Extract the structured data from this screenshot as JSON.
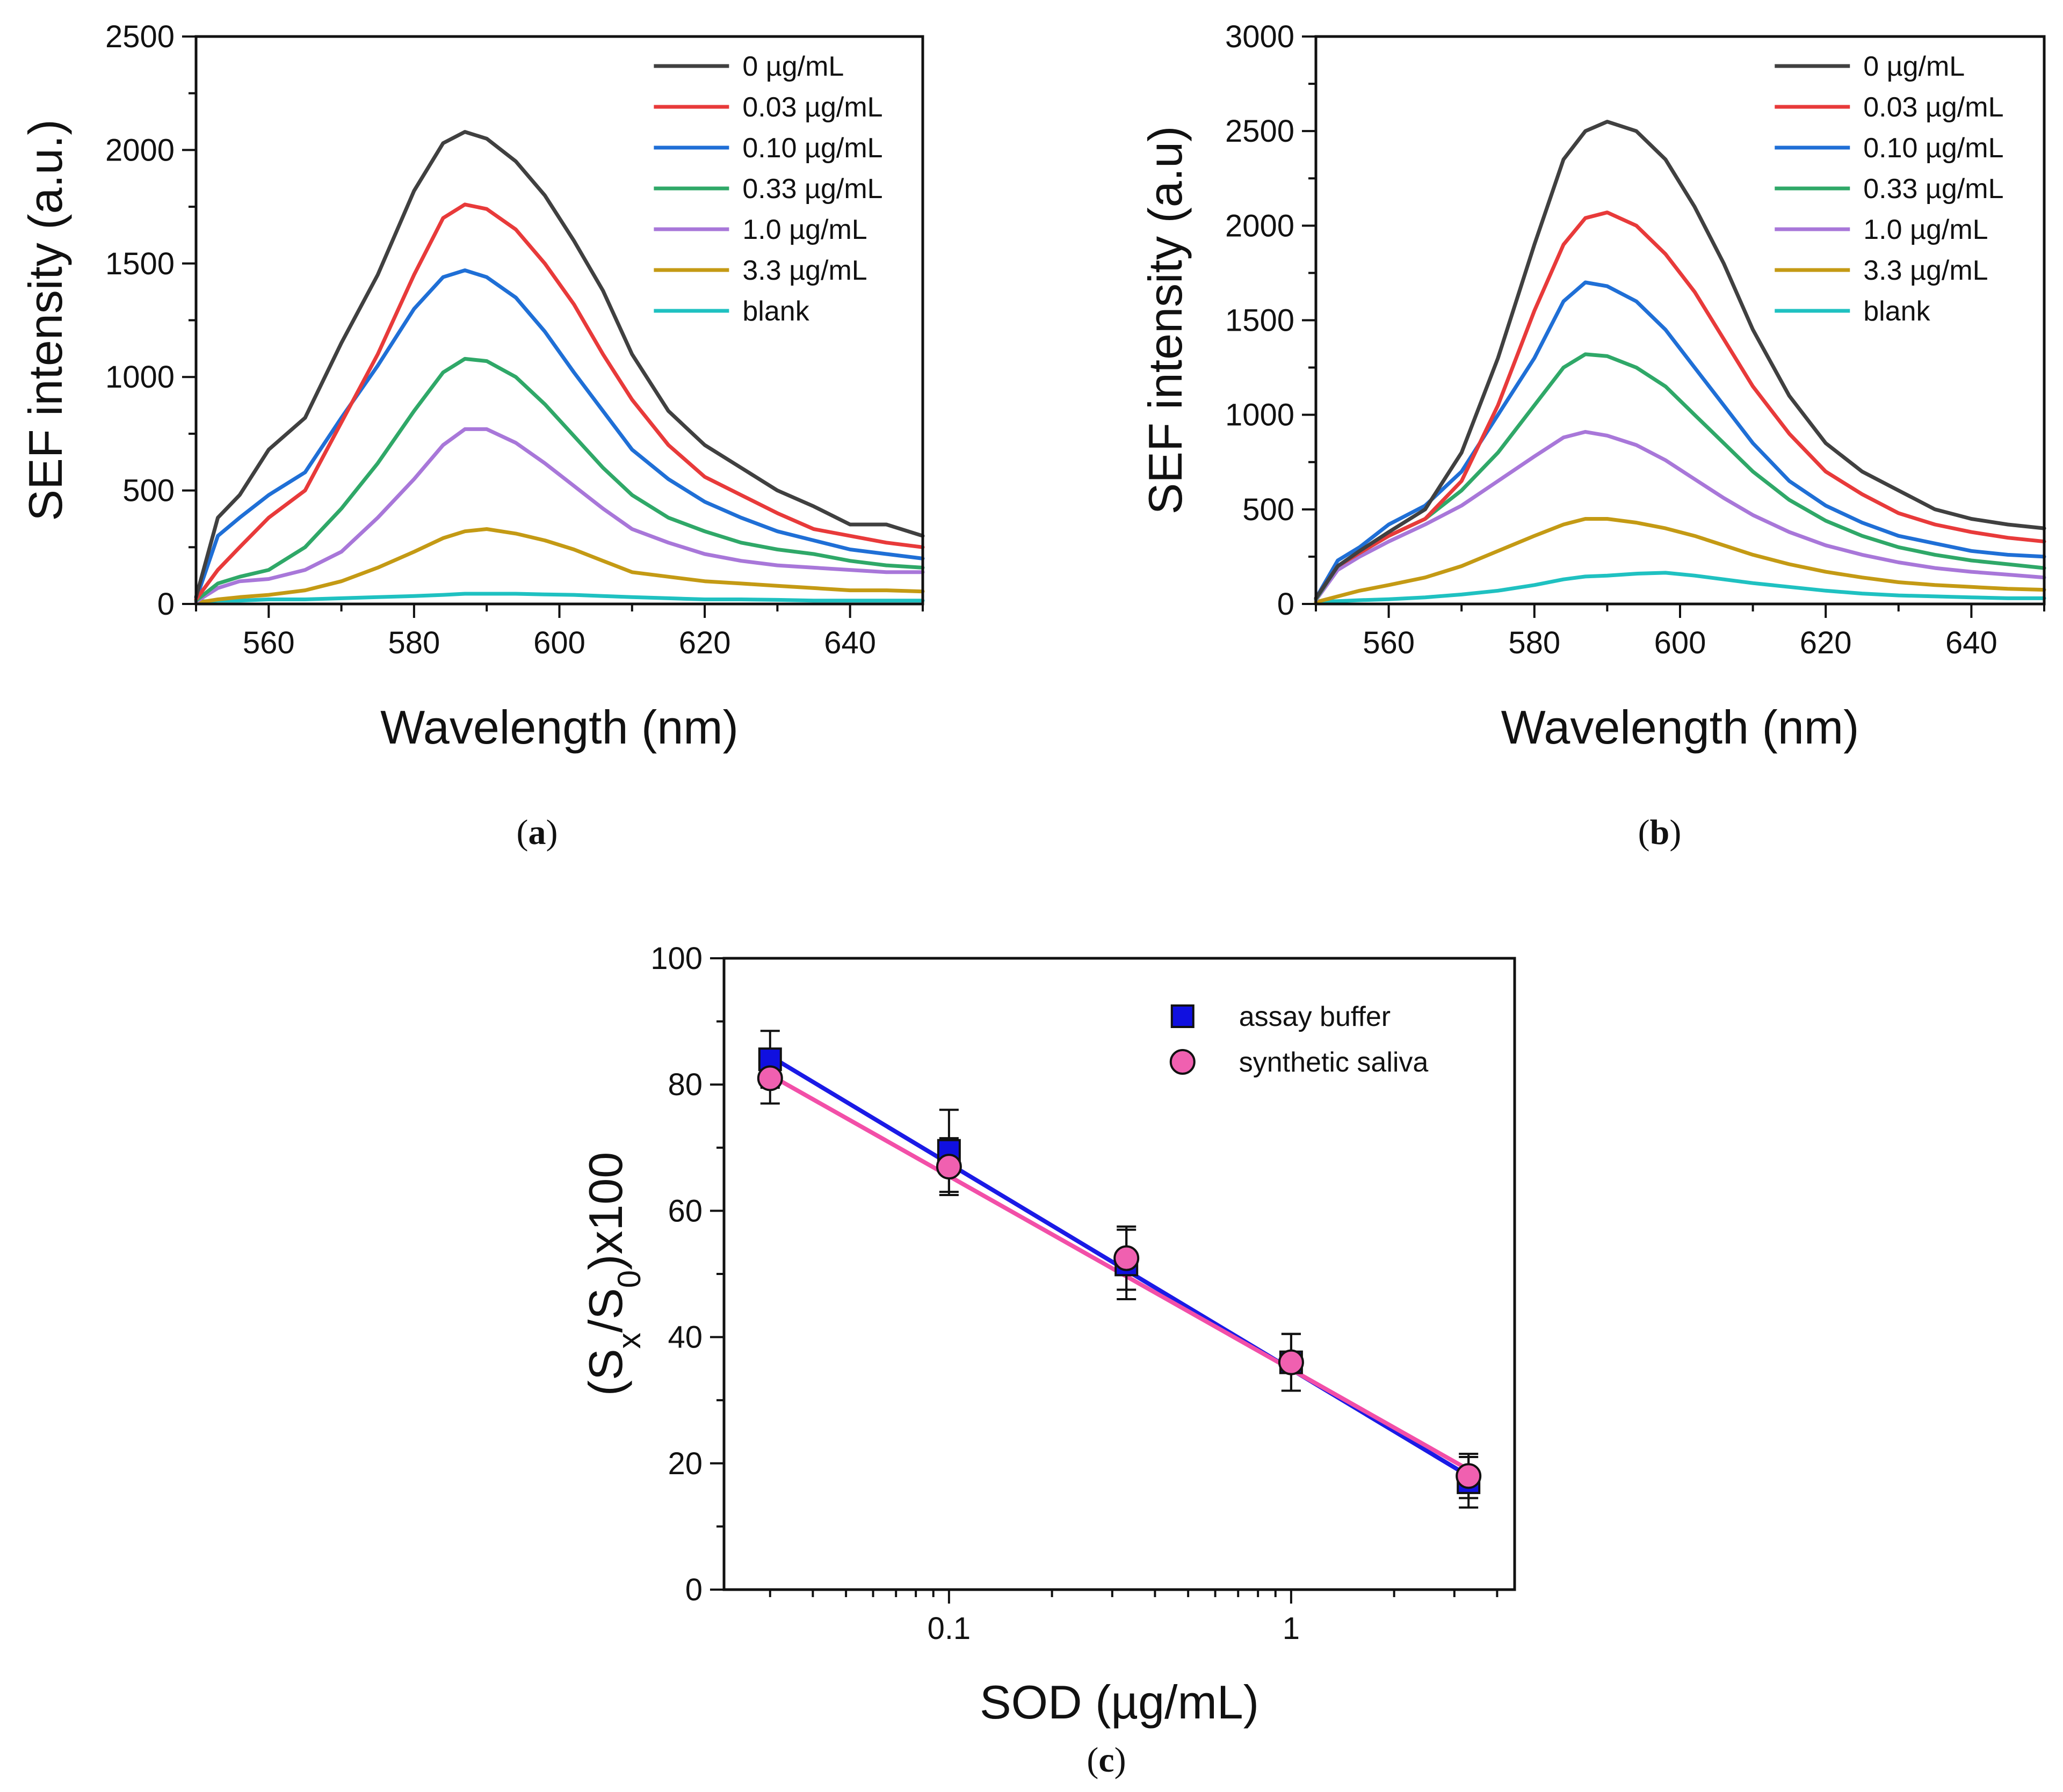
{
  "chart_data": [
    {
      "type": "line",
      "panel": "(a)",
      "panel_letter": "a",
      "xlabel": "Wavelength (nm)",
      "ylabel": "SEF intensity (a.u.)",
      "xlim": [
        550,
        650
      ],
      "ylim": [
        0,
        2500
      ],
      "xticks": [
        560,
        580,
        600,
        620,
        640
      ],
      "yticks": [
        0,
        500,
        1000,
        1500,
        2000,
        2500
      ],
      "legend_position": "top-right",
      "x": [
        550,
        553,
        556,
        560,
        565,
        570,
        575,
        580,
        584,
        587,
        590,
        594,
        598,
        602,
        606,
        610,
        615,
        620,
        625,
        630,
        635,
        640,
        645,
        650
      ],
      "series": [
        {
          "name": "0 µg/mL",
          "color": "#404040",
          "values": [
            30,
            380,
            480,
            680,
            820,
            1150,
            1450,
            1820,
            2030,
            2080,
            2050,
            1950,
            1800,
            1600,
            1380,
            1100,
            850,
            700,
            600,
            500,
            430,
            350,
            350,
            300
          ]
        },
        {
          "name": "0.03 µg/mL",
          "color": "#e83a3a",
          "values": [
            20,
            150,
            250,
            380,
            500,
            800,
            1100,
            1450,
            1700,
            1760,
            1740,
            1650,
            1500,
            1320,
            1100,
            900,
            700,
            560,
            480,
            400,
            330,
            300,
            270,
            250
          ]
        },
        {
          "name": "0.10 µg/mL",
          "color": "#1f6fd6",
          "values": [
            20,
            300,
            380,
            480,
            580,
            820,
            1050,
            1300,
            1440,
            1470,
            1440,
            1350,
            1200,
            1020,
            850,
            680,
            550,
            450,
            380,
            320,
            280,
            240,
            220,
            200
          ]
        },
        {
          "name": "0.33 µg/mL",
          "color": "#2fa868",
          "values": [
            15,
            90,
            120,
            150,
            250,
            420,
            620,
            850,
            1020,
            1080,
            1070,
            1000,
            880,
            740,
            600,
            480,
            380,
            320,
            270,
            240,
            220,
            190,
            170,
            160
          ]
        },
        {
          "name": "1.0 µg/mL",
          "color": "#a877d9",
          "values": [
            10,
            70,
            100,
            110,
            150,
            230,
            380,
            550,
            700,
            770,
            770,
            710,
            620,
            520,
            420,
            330,
            270,
            220,
            190,
            170,
            160,
            150,
            140,
            140
          ]
        },
        {
          "name": "3.3 µg/mL",
          "color": "#c49a14",
          "values": [
            5,
            20,
            30,
            40,
            60,
            100,
            160,
            230,
            290,
            320,
            330,
            310,
            280,
            240,
            190,
            140,
            120,
            100,
            90,
            80,
            70,
            60,
            60,
            55
          ]
        },
        {
          "name": "blank",
          "color": "#1fc1c1",
          "values": [
            10,
            15,
            15,
            20,
            20,
            25,
            30,
            35,
            40,
            45,
            45,
            45,
            42,
            40,
            35,
            30,
            25,
            20,
            20,
            18,
            15,
            15,
            15,
            15
          ]
        }
      ]
    },
    {
      "type": "line",
      "panel": "(b)",
      "panel_letter": "b",
      "xlabel": "Wavelength (nm)",
      "ylabel": "SEF intensity (a.u)",
      "xlim": [
        550,
        650
      ],
      "ylim": [
        0,
        3000
      ],
      "xticks": [
        560,
        580,
        600,
        620,
        640
      ],
      "yticks": [
        0,
        500,
        1000,
        1500,
        2000,
        2500,
        3000
      ],
      "legend_position": "top-right",
      "x": [
        550,
        553,
        556,
        560,
        565,
        570,
        575,
        580,
        584,
        587,
        590,
        594,
        598,
        602,
        606,
        610,
        615,
        620,
        625,
        630,
        635,
        640,
        645,
        650
      ],
      "series": [
        {
          "name": "0 µg/mL",
          "color": "#404040",
          "values": [
            30,
            200,
            280,
            380,
            500,
            800,
            1300,
            1900,
            2350,
            2500,
            2550,
            2500,
            2350,
            2100,
            1800,
            1450,
            1100,
            850,
            700,
            600,
            500,
            450,
            420,
            400
          ]
        },
        {
          "name": "0.03 µg/mL",
          "color": "#e83a3a",
          "values": [
            30,
            200,
            270,
            360,
            450,
            650,
            1050,
            1550,
            1900,
            2040,
            2070,
            2000,
            1850,
            1650,
            1400,
            1150,
            900,
            700,
            580,
            480,
            420,
            380,
            350,
            330
          ]
        },
        {
          "name": "0.10 µg/mL",
          "color": "#1f6fd6",
          "values": [
            30,
            230,
            300,
            420,
            520,
            700,
            1000,
            1300,
            1600,
            1700,
            1680,
            1600,
            1450,
            1250,
            1050,
            850,
            650,
            520,
            430,
            360,
            320,
            280,
            260,
            250
          ]
        },
        {
          "name": "0.33 µg/mL",
          "color": "#2fa868",
          "values": [
            25,
            200,
            270,
            360,
            450,
            600,
            800,
            1050,
            1250,
            1320,
            1310,
            1250,
            1150,
            1000,
            850,
            700,
            550,
            440,
            360,
            300,
            260,
            230,
            210,
            190
          ]
        },
        {
          "name": "1.0 µg/mL",
          "color": "#a877d9",
          "values": [
            20,
            180,
            250,
            330,
            420,
            520,
            650,
            780,
            880,
            910,
            890,
            840,
            760,
            660,
            560,
            470,
            380,
            310,
            260,
            220,
            190,
            170,
            155,
            140
          ]
        },
        {
          "name": "3.3 µg/mL",
          "color": "#c49a14",
          "values": [
            10,
            40,
            70,
            100,
            140,
            200,
            280,
            360,
            420,
            450,
            450,
            430,
            400,
            360,
            310,
            260,
            210,
            170,
            140,
            115,
            100,
            90,
            80,
            75
          ]
        },
        {
          "name": "blank",
          "color": "#1fc1c1",
          "values": [
            10,
            15,
            20,
            25,
            35,
            50,
            70,
            100,
            130,
            145,
            150,
            160,
            165,
            150,
            130,
            110,
            90,
            70,
            55,
            45,
            40,
            35,
            30,
            30
          ]
        }
      ]
    },
    {
      "type": "scatter",
      "panel": "(c)",
      "panel_letter": "c",
      "xlabel": "SOD (µg/mL)",
      "ylabel": {
        "pre": "(S",
        "sub1": "x",
        "mid": "/S",
        "sub2": "0",
        "post": ")x100"
      },
      "xscale": "log",
      "xlim": [
        0.022,
        4.5
      ],
      "ylim": [
        0,
        100
      ],
      "xticks": [
        {
          "value": 0.1,
          "label": "0.1"
        },
        {
          "value": 1,
          "label": "1"
        }
      ],
      "yticks": [
        0,
        20,
        40,
        60,
        80,
        100
      ],
      "legend_position": "top-right",
      "series": [
        {
          "name": "assay buffer",
          "marker": "square",
          "color": "#1010e0",
          "line_color": "#1a1ae6",
          "x": [
            0.03,
            0.1,
            0.33,
            1.0,
            3.3
          ],
          "y": [
            84,
            69.5,
            51.5,
            36,
            17
          ],
          "err": [
            4.5,
            6.5,
            5.5,
            4.5,
            4.0
          ],
          "fit": {
            "x": [
              0.03,
              3.3
            ],
            "y": [
              84.5,
              18.0
            ]
          }
        },
        {
          "name": "synthetic saliva",
          "marker": "circle",
          "color": "#f060b0",
          "line_color": "#f24fa8",
          "x": [
            0.03,
            0.1,
            0.33,
            1.0,
            3.3
          ],
          "y": [
            81,
            67,
            52.5,
            36,
            18
          ],
          "err": [
            4.0,
            4.5,
            5.0,
            4.5,
            3.5
          ],
          "fit": {
            "x": [
              0.03,
              3.3
            ],
            "y": [
              81.5,
              19.0
            ]
          }
        }
      ]
    }
  ]
}
